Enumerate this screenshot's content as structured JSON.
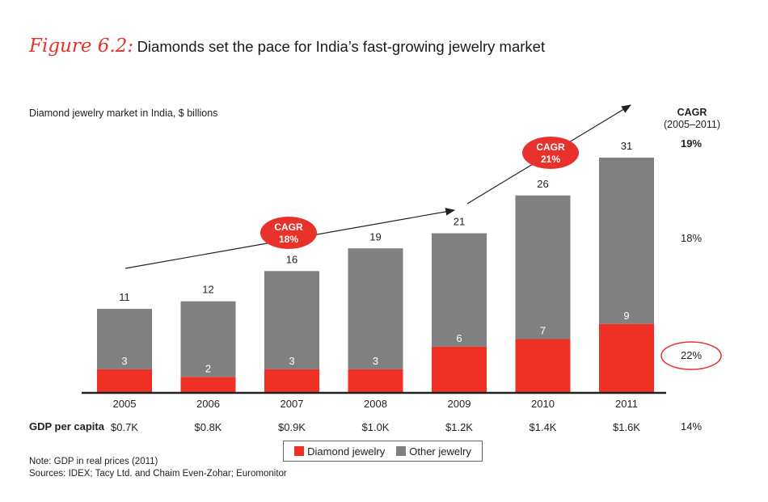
{
  "figure": {
    "label": "Figure 6.2:",
    "title": "Diamonds set the pace for India’s fast-growing jewelry market"
  },
  "subtitle": "Diamond jewelry market in India, $ billions",
  "cagr_header": {
    "line1": "CAGR",
    "line2": "(2005–2011)"
  },
  "cagr_total": "19%",
  "cagr_other": "18%",
  "cagr_diamond": "22%",
  "cagr_gdp": "14%",
  "bubbles": [
    {
      "line1": "CAGR",
      "line2": "18%"
    },
    {
      "line1": "CAGR",
      "line2": "21%"
    }
  ],
  "gdp_label": "GDP per capita",
  "legend": {
    "diamond": "Diamond jewelry",
    "other": "Other jewelry"
  },
  "notes": {
    "line1": "Note: GDP in real prices (2011)",
    "line2": "Sources: IDEX; Tacy Ltd. and Chaim Even-Zohar; Euromonitor"
  },
  "colors": {
    "diamond": "#ee3124",
    "other": "#808080",
    "accent": "#e8312a"
  },
  "chart_data": {
    "type": "bar",
    "stacked": true,
    "categories": [
      "2005",
      "2006",
      "2007",
      "2008",
      "2009",
      "2010",
      "2011"
    ],
    "series": [
      {
        "name": "Diamond jewelry",
        "values": [
          3,
          2,
          3,
          3,
          6,
          7,
          9
        ]
      },
      {
        "name": "Other jewelry",
        "values": [
          8,
          10,
          13,
          16,
          15,
          19,
          22
        ]
      }
    ],
    "totals": [
      11,
      12,
      16,
      19,
      21,
      26,
      31
    ],
    "gdp_per_capita": [
      "$0.7K",
      "$0.8K",
      "$0.9K",
      "$1.0K",
      "$1.2K",
      "$1.4K",
      "$1.6K"
    ],
    "ylim": [
      0,
      31
    ],
    "legend_position": "bottom-center",
    "grid": false
  }
}
